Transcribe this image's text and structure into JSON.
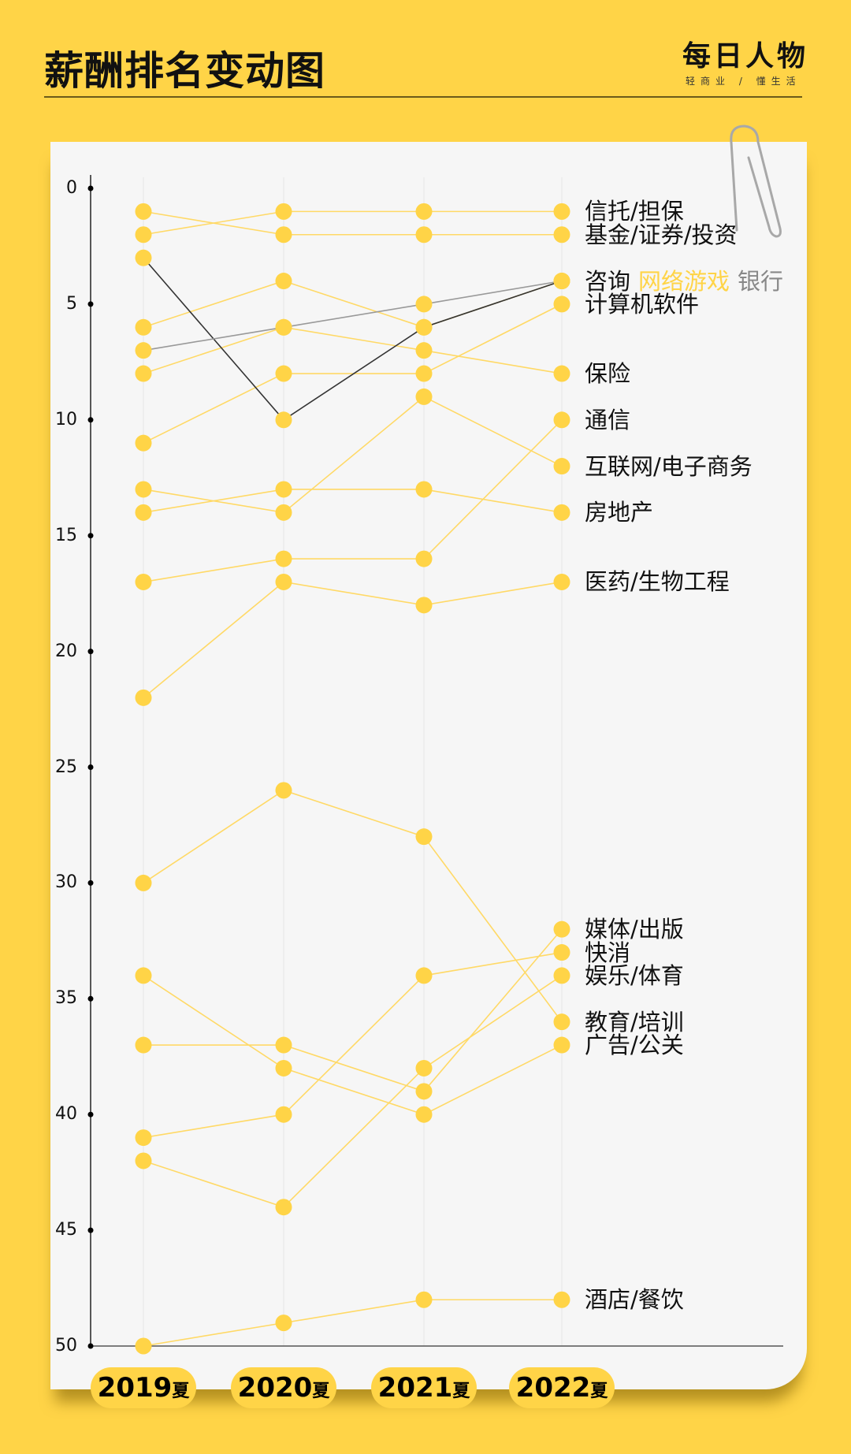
{
  "header": {
    "title": "薪酬排名变动图",
    "logo": "每日人物",
    "tagline": "轻商业 / 懂生活"
  },
  "colors": {
    "background": "#FFD447",
    "card": "#f6f6f6",
    "dot": "#FFD447",
    "line_default": "#FFD966",
    "line_highlight_black": "#333333",
    "line_highlight_gray": "#999999",
    "label_yellow": "#FFD447",
    "label_gray": "#888888"
  },
  "chart_data": {
    "type": "line",
    "subtype": "bump",
    "categories": [
      "2019",
      "2020",
      "2021",
      "2022"
    ],
    "category_suffix": "夏",
    "ylim": [
      50,
      0
    ],
    "y_inverted": true,
    "yticks": [
      0,
      5,
      10,
      15,
      20,
      25,
      30,
      35,
      40,
      45,
      50
    ],
    "grid": "vertical",
    "series": [
      {
        "name": "信托/担保",
        "values": [
          2,
          1,
          1,
          1
        ],
        "style": "yellow"
      },
      {
        "name": "基金/证券/投资",
        "values": [
          1,
          2,
          2,
          2
        ],
        "style": "yellow"
      },
      {
        "name": "咨询",
        "values": [
          3,
          10,
          6,
          4
        ],
        "style": "black"
      },
      {
        "name": "网络游戏",
        "values": [
          6,
          4,
          6,
          4
        ],
        "style": "yellow",
        "label_color": "yellow"
      },
      {
        "name": "银行",
        "values": [
          7,
          6,
          5,
          4
        ],
        "style": "gray",
        "label_color": "gray"
      },
      {
        "name": "计算机软件",
        "values": [
          11,
          8,
          8,
          5
        ],
        "style": "yellow"
      },
      {
        "name": "保险",
        "values": [
          8,
          6,
          7,
          8
        ],
        "style": "yellow"
      },
      {
        "name": "通信",
        "values": [
          17,
          16,
          16,
          10
        ],
        "style": "yellow"
      },
      {
        "name": "互联网/电子商务",
        "values": [
          13,
          14,
          9,
          12
        ],
        "style": "yellow"
      },
      {
        "name": "房地产",
        "values": [
          14,
          13,
          13,
          14
        ],
        "style": "yellow"
      },
      {
        "name": "医药/生物工程",
        "values": [
          22,
          17,
          18,
          17
        ],
        "style": "yellow"
      },
      {
        "name": "媒体/出版",
        "values": [
          37,
          37,
          39,
          32
        ],
        "style": "yellow"
      },
      {
        "name": "快消",
        "values": [
          41,
          40,
          34,
          33
        ],
        "style": "yellow"
      },
      {
        "name": "娱乐/体育",
        "values": [
          42,
          44,
          38,
          34
        ],
        "style": "yellow"
      },
      {
        "name": "教育/培训",
        "values": [
          30,
          26,
          28,
          36
        ],
        "style": "yellow"
      },
      {
        "name": "广告/公关",
        "values": [
          34,
          38,
          40,
          37
        ],
        "style": "yellow"
      },
      {
        "name": "酒店/餐饮",
        "values": [
          50,
          49,
          48,
          48
        ],
        "style": "yellow"
      }
    ]
  }
}
